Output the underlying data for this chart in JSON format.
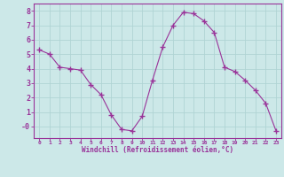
{
  "x": [
    0,
    1,
    2,
    3,
    4,
    5,
    6,
    7,
    8,
    9,
    10,
    11,
    12,
    13,
    14,
    15,
    16,
    17,
    18,
    19,
    20,
    21,
    22,
    23
  ],
  "y": [
    5.3,
    5.0,
    4.1,
    4.0,
    3.9,
    2.9,
    2.2,
    0.8,
    -0.2,
    -0.3,
    0.7,
    3.2,
    5.5,
    7.0,
    7.9,
    7.8,
    7.3,
    6.5,
    4.1,
    3.8,
    3.2,
    2.5,
    1.6,
    -0.3
  ],
  "line_color": "#993399",
  "marker": "+",
  "marker_size": 4,
  "bg_color": "#cce8e8",
  "grid_color": "#b0d4d4",
  "xlabel": "Windchill (Refroidissement éolien,°C)",
  "xlabel_color": "#993399",
  "tick_color": "#993399",
  "ylim": [
    -0.8,
    8.5
  ],
  "xlim": [
    -0.5,
    23.5
  ],
  "yticks": [
    0,
    1,
    2,
    3,
    4,
    5,
    6,
    7,
    8
  ],
  "yticklabels": [
    "-0",
    "1",
    "2",
    "3",
    "4",
    "5",
    "6",
    "7",
    "8"
  ],
  "xticks": [
    0,
    1,
    2,
    3,
    4,
    5,
    6,
    7,
    8,
    9,
    10,
    11,
    12,
    13,
    14,
    15,
    16,
    17,
    18,
    19,
    20,
    21,
    22,
    23
  ],
  "xticklabels": [
    "0",
    "1",
    "2",
    "3",
    "4",
    "5",
    "6",
    "7",
    "8",
    "9",
    "10",
    "11",
    "12",
    "13",
    "14",
    "15",
    "16",
    "17",
    "18",
    "19",
    "20",
    "21",
    "22",
    "23"
  ]
}
